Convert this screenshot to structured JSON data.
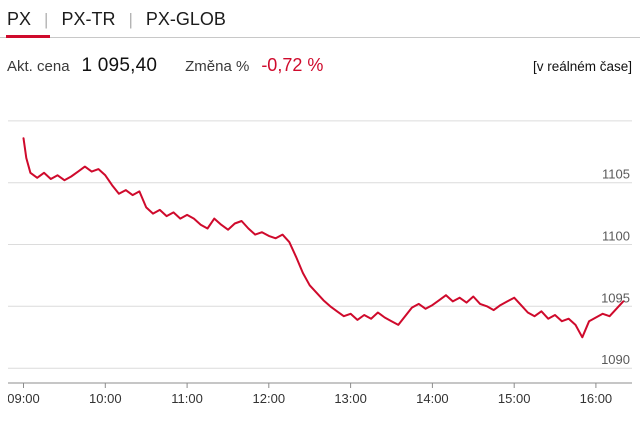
{
  "tabs": [
    {
      "label": "PX",
      "active": true
    },
    {
      "label": "PX-TR",
      "active": false
    },
    {
      "label": "PX-GLOB",
      "active": false
    }
  ],
  "tab_separator": "|",
  "info": {
    "price_label": "Akt. cena",
    "price_value": "1 095,40",
    "change_label": "Změna %",
    "change_value": "-0,72 %",
    "realtime_note": "[v reálném čase]"
  },
  "colors": {
    "accent_red": "#cf0a2c",
    "grid_line": "#dcdcdc",
    "axis_line": "#8c8c8c",
    "tick_text": "#5a5a5a",
    "tab_rule": "#c8c8c8"
  },
  "chart_data": {
    "type": "line",
    "series_name": "PX",
    "line_color": "#cf0a2c",
    "grid": true,
    "legend": "none",
    "x_range_minutes": [
      533,
      985
    ],
    "ylim": [
      1088.8,
      1110.8
    ],
    "y_gridlines": [
      1090,
      1095,
      1100,
      1105,
      1110
    ],
    "y_tick_labels": [
      1105,
      1100,
      1095,
      1090
    ],
    "x_tick_minutes": [
      540,
      600,
      660,
      720,
      780,
      840,
      900,
      960
    ],
    "x_tick_labels": [
      "09:00",
      "10:00",
      "11:00",
      "12:00",
      "13:00",
      "14:00",
      "15:00",
      "16:00"
    ],
    "x_minutes": [
      540,
      542,
      545,
      550,
      555,
      560,
      565,
      570,
      575,
      580,
      585,
      590,
      595,
      600,
      605,
      610,
      615,
      620,
      625,
      630,
      635,
      640,
      645,
      650,
      655,
      660,
      665,
      670,
      675,
      680,
      685,
      690,
      695,
      700,
      705,
      710,
      715,
      720,
      725,
      730,
      735,
      740,
      745,
      750,
      755,
      760,
      765,
      770,
      775,
      780,
      785,
      790,
      795,
      800,
      805,
      810,
      815,
      820,
      825,
      830,
      835,
      840,
      845,
      850,
      855,
      860,
      865,
      870,
      875,
      880,
      885,
      890,
      895,
      900,
      905,
      910,
      915,
      920,
      925,
      930,
      935,
      940,
      945,
      950,
      955,
      960,
      965,
      970,
      975,
      980
    ],
    "values": [
      1108.6,
      1107.0,
      1105.8,
      1105.4,
      1105.8,
      1105.3,
      1105.6,
      1105.2,
      1105.5,
      1105.9,
      1106.3,
      1105.9,
      1106.1,
      1105.6,
      1104.8,
      1104.1,
      1104.4,
      1104.0,
      1104.3,
      1103.0,
      1102.5,
      1102.8,
      1102.3,
      1102.6,
      1102.1,
      1102.4,
      1102.1,
      1101.6,
      1101.3,
      1102.1,
      1101.6,
      1101.2,
      1101.7,
      1101.9,
      1101.3,
      1100.8,
      1101.0,
      1100.7,
      1100.5,
      1100.8,
      1100.2,
      1099.0,
      1097.7,
      1096.7,
      1096.1,
      1095.5,
      1095.0,
      1094.6,
      1094.2,
      1094.4,
      1093.9,
      1094.3,
      1094.0,
      1094.5,
      1094.1,
      1093.8,
      1093.5,
      1094.2,
      1094.9,
      1095.2,
      1094.8,
      1095.1,
      1095.5,
      1095.9,
      1095.4,
      1095.7,
      1095.3,
      1095.8,
      1095.2,
      1095.0,
      1094.7,
      1095.1,
      1095.4,
      1095.7,
      1095.1,
      1094.5,
      1094.2,
      1094.6,
      1094.0,
      1094.3,
      1093.8,
      1094.0,
      1093.5,
      1092.5,
      1093.8,
      1094.1,
      1094.4,
      1094.2,
      1094.8,
      1095.4
    ]
  }
}
